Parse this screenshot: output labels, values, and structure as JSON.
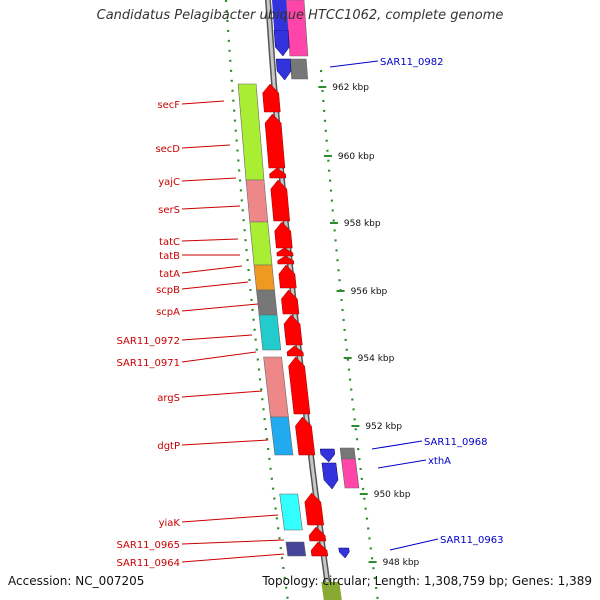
{
  "title": "Candidatus Pelagibacter ubique HTCC1062, complete genome",
  "footer": {
    "accession": "Accession: NC_007205",
    "topology": "Topology: circular; Length: 1,308,759 bp; Genes: 1,389"
  },
  "scale_ticks_kbp": [
    "962 kbp",
    "960 kbp",
    "958 kbp",
    "956 kbp",
    "954 kbp",
    "952 kbp",
    "950 kbp",
    "948 kbp"
  ],
  "genes_left": [
    "secF",
    "secD",
    "yajC",
    "serS",
    "tatC",
    "tatB",
    "tatA",
    "scpB",
    "scpA",
    "SAR11_0972",
    "SAR11_0971",
    "argS",
    "dgtP",
    "yiaK",
    "SAR11_0965",
    "SAR11_0964"
  ],
  "genes_right": [
    "SAR11_0982",
    "SAR11_0968",
    "xthA",
    "SAR11_0963"
  ],
  "colors": {
    "label_left": "#cc0000",
    "label_right": "#0000cc",
    "strand": "#ff0000",
    "backbone": "#8a8a8a",
    "tick_dot": "#2e8b2e",
    "cog_green": "#aaee33",
    "cog_pink": "#ee8888",
    "cog_orange": "#ee9922",
    "cog_gray": "#777777",
    "cog_cyan": "#22cccc",
    "cog_blue": "#22aaee",
    "cog_magenta": "#ff44aa",
    "cog_navy": "#3333dd"
  }
}
